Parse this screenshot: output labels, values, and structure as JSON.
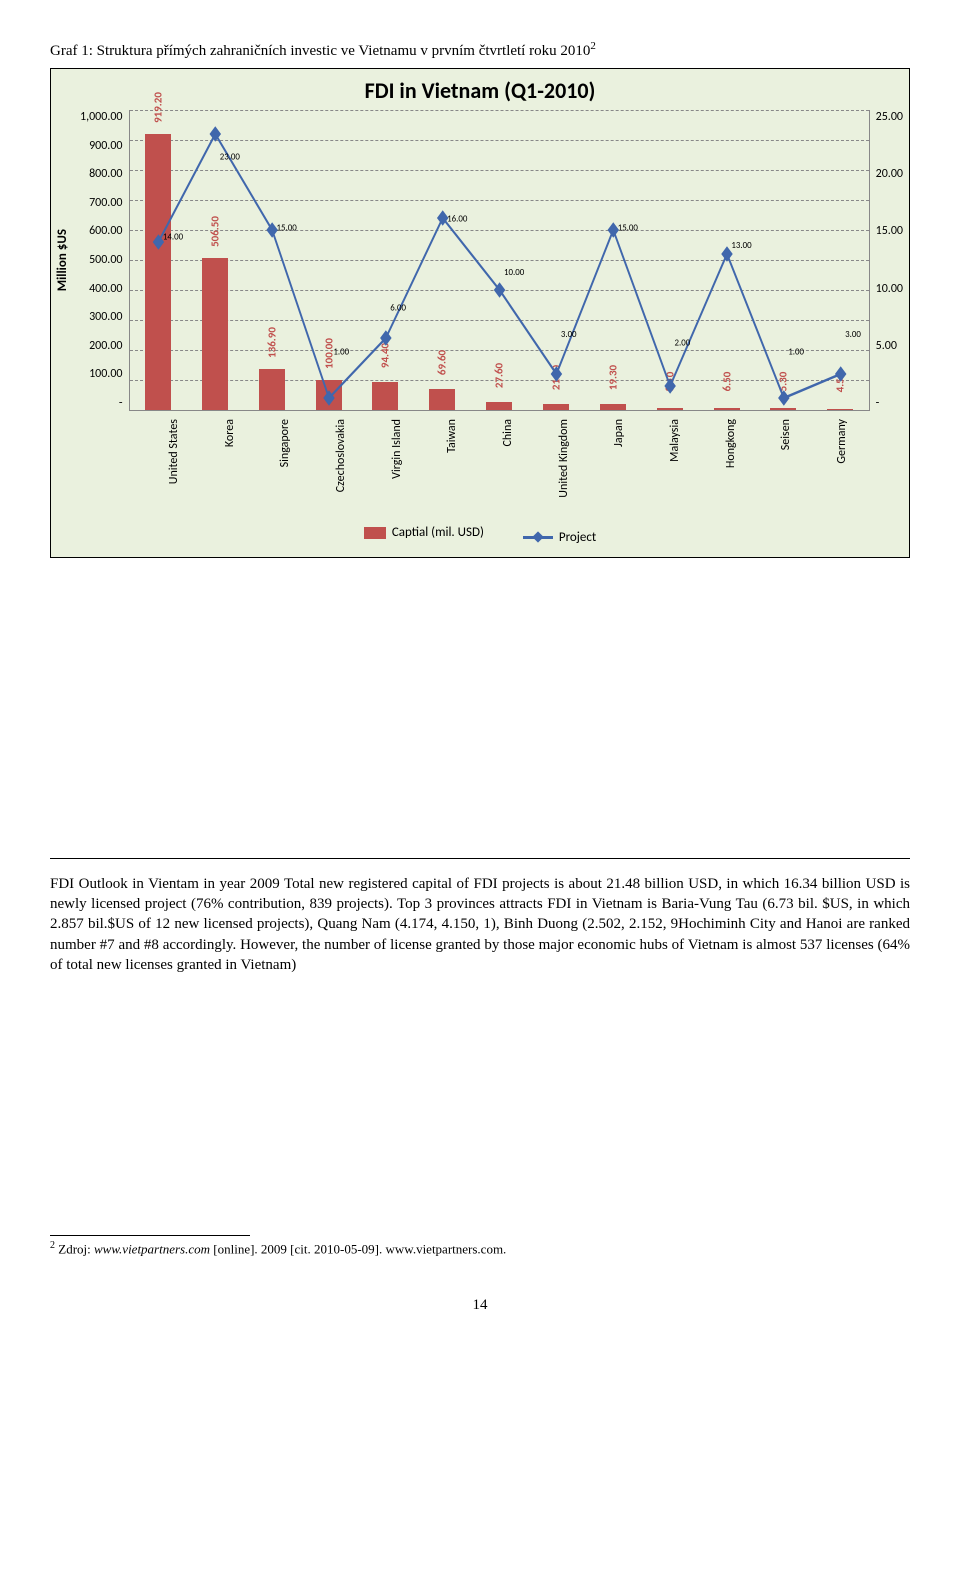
{
  "caption": {
    "text": "Graf 1: Struktura přímých zahraničních investic ve Vietnamu v prvním čtvrtletí roku 2010",
    "sup": "2"
  },
  "chart": {
    "type": "bar+line",
    "title": "FDI in Vietnam  (Q1-2010)",
    "y1_label": "Million $US",
    "y1_ticks": [
      "1,000.00",
      "900.00",
      "800.00",
      "700.00",
      "600.00",
      "500.00",
      "400.00",
      "300.00",
      "200.00",
      "100.00",
      "-"
    ],
    "y1_max": 1000,
    "y2_ticks": [
      "25.00",
      "20.00",
      "15.00",
      "10.00",
      "5.00",
      "-"
    ],
    "y2_max": 25,
    "background_color": "#eaf1de",
    "bar_color": "#c0504d",
    "line_color": "#4067ac",
    "grid_color": "#888888",
    "categories": [
      "United States",
      "Korea",
      "Singapore",
      "Czechoslovakia",
      "Virgin Island",
      "Taiwan",
      "China",
      "United Kingdom",
      "Japan",
      "Malaysia",
      "Hongkong",
      "Seisen",
      "Germany"
    ],
    "bar_values": [
      919.2,
      506.5,
      136.9,
      100.0,
      94.4,
      69.6,
      27.6,
      21.4,
      19.3,
      8.1,
      6.5,
      5.3,
      4.5
    ],
    "bar_labels": [
      "919.20",
      "506.50",
      "136.90",
      "100.00",
      "94.40",
      "69.60",
      "27.60",
      "21.40",
      "19.30",
      "8.10",
      "6.50",
      "5.30",
      "4.50"
    ],
    "line_values": [
      14.0,
      23.0,
      15.0,
      1.0,
      6.0,
      16.0,
      10.0,
      3.0,
      15.0,
      2.0,
      13.0,
      1.0,
      3.0
    ],
    "line_labels": [
      "14.00",
      "23.00",
      "15.00",
      "1.00",
      "6.00",
      "16.00",
      "10.00",
      "3.00",
      "15.00",
      "2.00",
      "13.00",
      "1.00",
      "3.00"
    ],
    "legend_bar": "Captial (mil. USD)",
    "legend_line": "Project"
  },
  "paragraph": "FDI Outlook in Vientam in year 2009 Total new registered capital of FDI projects is about 21.48 billion USD, in which 16.34 billion USD is newly licensed project (76% contribution, 839 projects). Top 3 provinces attracts FDI in Vietnam is Baria-Vung Tau (6.73 bil. $US, in which 2.857 bil.$US of 12 new licensed projects), Quang Nam (4.174, 4.150, 1), Binh Duong (2.502, 2.152, 9Hochiminh City and Hanoi are ranked number #7 and #8 accordingly. However, the number of license granted by those major economic hubs of Vietnam is almost 537 licenses (64% of total new licenses granted in Vietnam)",
  "footnote": {
    "sup": "2",
    "text_before": " Zdroj: ",
    "italic": "www.vietpartners.com",
    "text_after": " [online]. 2009 [cit. 2010-05-09]. www.vietpartners.com."
  },
  "page_number": "14"
}
